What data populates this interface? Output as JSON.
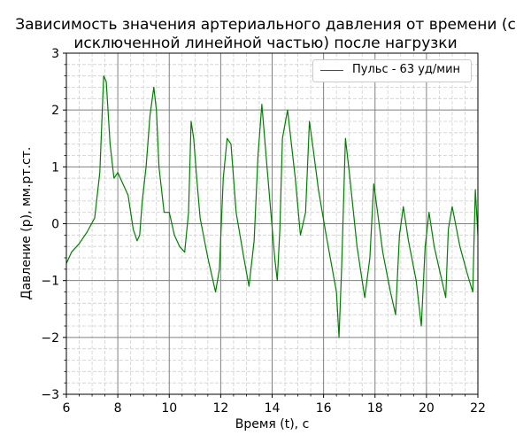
{
  "chart_data": {
    "type": "line",
    "title_lines": [
      "Зависимость значения артериального давления от времени (с",
      "исключенной линейной частью) после нагрузки"
    ],
    "xlabel": "Время (t), с",
    "ylabel": "Давление (p), мм.рт.ст.",
    "xlim": [
      6,
      22
    ],
    "ylim": [
      -3,
      3
    ],
    "xticks": [
      6,
      8,
      10,
      12,
      14,
      16,
      18,
      20,
      22
    ],
    "yticks": [
      -3,
      -2,
      -1,
      0,
      1,
      2,
      3
    ],
    "x_minor_step": 0.5,
    "y_minor_step": 0.2,
    "grid": "major and minor",
    "legend_position": "top-right",
    "series": [
      {
        "name": "Пульс - 63 уд/мин",
        "color": "#008000",
        "x": [
          6.0,
          6.2,
          6.5,
          6.8,
          7.1,
          7.3,
          7.45,
          7.55,
          7.7,
          7.85,
          8.0,
          8.2,
          8.4,
          8.6,
          8.75,
          8.85,
          8.95,
          9.1,
          9.25,
          9.4,
          9.5,
          9.6,
          9.8,
          10.0,
          10.2,
          10.4,
          10.6,
          10.75,
          10.85,
          10.95,
          11.05,
          11.2,
          11.5,
          11.8,
          11.95,
          12.1,
          12.25,
          12.4,
          12.6,
          12.9,
          13.1,
          13.3,
          13.45,
          13.6,
          13.8,
          14.1,
          14.2,
          14.3,
          14.4,
          14.6,
          14.9,
          15.1,
          15.3,
          15.45,
          15.6,
          15.8,
          16.1,
          16.5,
          16.6,
          16.7,
          16.85,
          17.0,
          17.3,
          17.6,
          17.8,
          17.95,
          18.1,
          18.3,
          18.6,
          18.8,
          18.95,
          19.1,
          19.3,
          19.6,
          19.8,
          19.95,
          20.1,
          20.3,
          20.6,
          20.75,
          20.85,
          21.0,
          21.3,
          21.6,
          21.8,
          21.9,
          22.0
        ],
        "y": [
          -0.7,
          -0.5,
          -0.35,
          -0.15,
          0.1,
          0.9,
          2.6,
          2.5,
          1.4,
          0.8,
          0.9,
          0.7,
          0.5,
          -0.1,
          -0.3,
          -0.2,
          0.4,
          1.0,
          1.9,
          2.4,
          2.0,
          1.0,
          0.2,
          0.2,
          -0.2,
          -0.4,
          -0.5,
          0.2,
          1.8,
          1.5,
          0.9,
          0.1,
          -0.6,
          -1.2,
          -0.8,
          0.8,
          1.5,
          1.4,
          0.2,
          -0.6,
          -1.1,
          -0.3,
          1.2,
          2.1,
          1.0,
          -0.6,
          -1.0,
          -0.1,
          1.5,
          2.0,
          0.8,
          -0.2,
          0.2,
          1.8,
          1.3,
          0.6,
          -0.2,
          -1.2,
          -2.0,
          -0.8,
          1.5,
          0.9,
          -0.4,
          -1.3,
          -0.6,
          0.7,
          0.2,
          -0.5,
          -1.2,
          -1.6,
          -0.2,
          0.3,
          -0.3,
          -1.0,
          -1.8,
          -0.4,
          0.2,
          -0.4,
          -1.0,
          -1.3,
          -0.1,
          0.3,
          -0.4,
          -0.9,
          -1.2,
          0.6,
          -0.2
        ]
      }
    ]
  }
}
